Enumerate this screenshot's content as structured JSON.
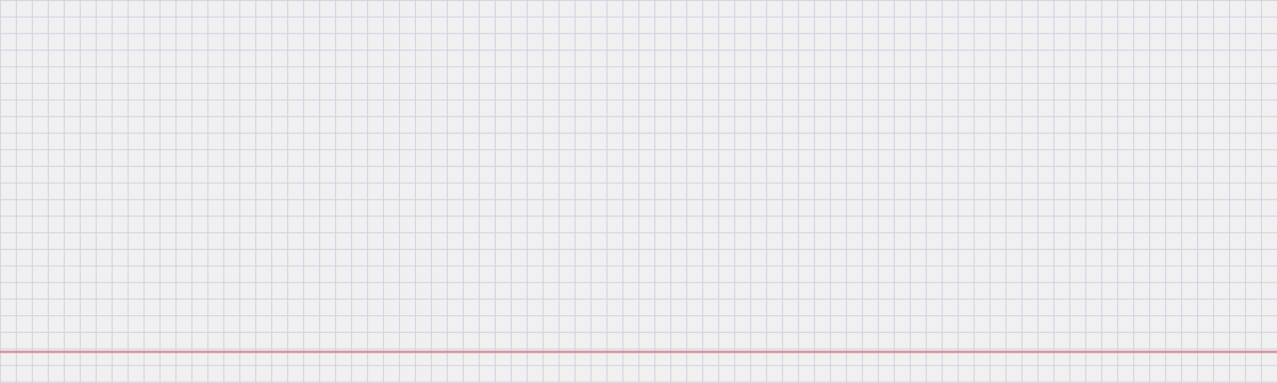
{
  "canvas": {
    "background_color": "#f0f0f0",
    "grid_line_color": "#d3cfe2",
    "accent_line_color": "#d9949a"
  }
}
